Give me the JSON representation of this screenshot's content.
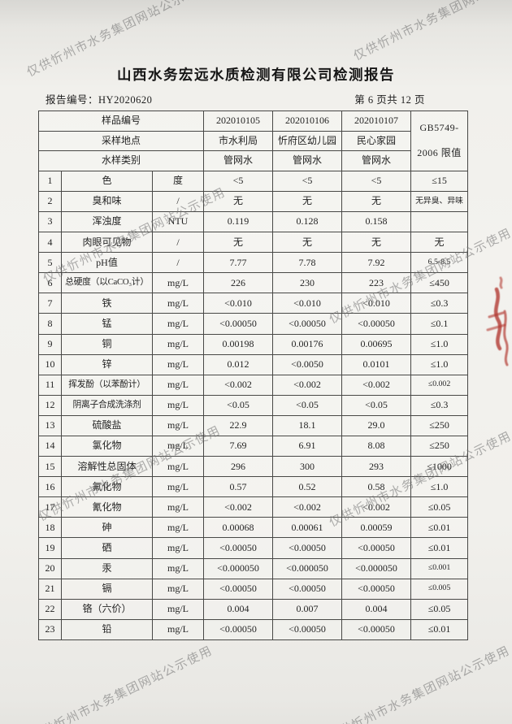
{
  "header": {
    "title": "山西水务宏远水质检测有限公司检测报告",
    "report_no_label": "报告编号：",
    "report_no": "HY2020620",
    "page_info": "第 6 页共 12 页"
  },
  "watermark": {
    "text": "仅供忻州市水务集团网站公示使用"
  },
  "stamp": {
    "color": "#b23a32",
    "name": "red-seal-fragment"
  },
  "table": {
    "head": {
      "sample_no_label": "样品编号",
      "location_label": "采样地点",
      "type_label": "水样类别",
      "sample_nos": [
        "202010105",
        "202010106",
        "202010107"
      ],
      "locations": [
        "市水利局",
        "忻府区幼儿园",
        "民心家园"
      ],
      "types": [
        "管网水",
        "管网水",
        "管网水"
      ],
      "limit_line1": "GB5749-",
      "limit_line2": "2006 限值"
    },
    "rows": [
      {
        "no": "1",
        "name": "色",
        "unit": "度",
        "values": [
          "<5",
          "<5",
          "<5"
        ],
        "limit": "≤15"
      },
      {
        "no": "2",
        "name": "臭和味",
        "unit": "/",
        "values": [
          "无",
          "无",
          "无"
        ],
        "limit": "无异臭、异味"
      },
      {
        "no": "3",
        "name": "浑浊度",
        "unit": "NTU",
        "values": [
          "0.119",
          "0.128",
          "0.158"
        ],
        "limit": ""
      },
      {
        "no": "4",
        "name": "肉眼可见物",
        "unit": "/",
        "values": [
          "无",
          "无",
          "无"
        ],
        "limit": "无"
      },
      {
        "no": "5",
        "name": "pH值",
        "unit": "/",
        "values": [
          "7.77",
          "7.78",
          "7.92"
        ],
        "limit": "6.5-8.5"
      },
      {
        "no": "6",
        "name": "总硬度（以CaCO₃计）",
        "unit": "mg/L",
        "values": [
          "226",
          "230",
          "223"
        ],
        "limit": "≤450"
      },
      {
        "no": "7",
        "name": "铁",
        "unit": "mg/L",
        "values": [
          "<0.010",
          "<0.010",
          "<0.010"
        ],
        "limit": "≤0.3"
      },
      {
        "no": "8",
        "name": "锰",
        "unit": "mg/L",
        "values": [
          "<0.00050",
          "<0.00050",
          "<0.00050"
        ],
        "limit": "≤0.1"
      },
      {
        "no": "9",
        "name": "铜",
        "unit": "mg/L",
        "values": [
          "0.00198",
          "0.00176",
          "0.00695"
        ],
        "limit": "≤1.0"
      },
      {
        "no": "10",
        "name": "锌",
        "unit": "mg/L",
        "values": [
          "0.012",
          "<0.0050",
          "0.0101"
        ],
        "limit": "≤1.0"
      },
      {
        "no": "11",
        "name": "挥发酚（以苯酚计）",
        "unit": "mg/L",
        "values": [
          "<0.002",
          "<0.002",
          "<0.002"
        ],
        "limit": "≤0.002"
      },
      {
        "no": "12",
        "name": "阴离子合成洗涤剂",
        "unit": "mg/L",
        "values": [
          "<0.05",
          "<0.05",
          "<0.05"
        ],
        "limit": "≤0.3"
      },
      {
        "no": "13",
        "name": "硫酸盐",
        "unit": "mg/L",
        "values": [
          "22.9",
          "18.1",
          "29.0"
        ],
        "limit": "≤250"
      },
      {
        "no": "14",
        "name": "氯化物",
        "unit": "mg/L",
        "values": [
          "7.69",
          "6.91",
          "8.08"
        ],
        "limit": "≤250"
      },
      {
        "no": "15",
        "name": "溶解性总固体",
        "unit": "mg/L",
        "values": [
          "296",
          "300",
          "293"
        ],
        "limit": "≤1000"
      },
      {
        "no": "16",
        "name": "氟化物",
        "unit": "mg/L",
        "values": [
          "0.57",
          "0.52",
          "0.58"
        ],
        "limit": "≤1.0"
      },
      {
        "no": "17",
        "name": "氰化物",
        "unit": "mg/L",
        "values": [
          "<0.002",
          "<0.002",
          "<0.002"
        ],
        "limit": "≤0.05"
      },
      {
        "no": "18",
        "name": "砷",
        "unit": "mg/L",
        "values": [
          "0.00068",
          "0.00061",
          "0.00059"
        ],
        "limit": "≤0.01"
      },
      {
        "no": "19",
        "name": "硒",
        "unit": "mg/L",
        "values": [
          "<0.00050",
          "<0.00050",
          "<0.00050"
        ],
        "limit": "≤0.01"
      },
      {
        "no": "20",
        "name": "汞",
        "unit": "mg/L",
        "values": [
          "<0.000050",
          "<0.000050",
          "<0.000050"
        ],
        "limit": "≤0.001"
      },
      {
        "no": "21",
        "name": "镉",
        "unit": "mg/L",
        "values": [
          "<0.00050",
          "<0.00050",
          "<0.00050"
        ],
        "limit": "≤0.005"
      },
      {
        "no": "22",
        "name": "铬（六价）",
        "unit": "mg/L",
        "values": [
          "0.004",
          "0.007",
          "0.004"
        ],
        "limit": "≤0.05"
      },
      {
        "no": "23",
        "name": "铅",
        "unit": "mg/L",
        "values": [
          "<0.00050",
          "<0.00050",
          "<0.00050"
        ],
        "limit": "≤0.01"
      }
    ]
  }
}
